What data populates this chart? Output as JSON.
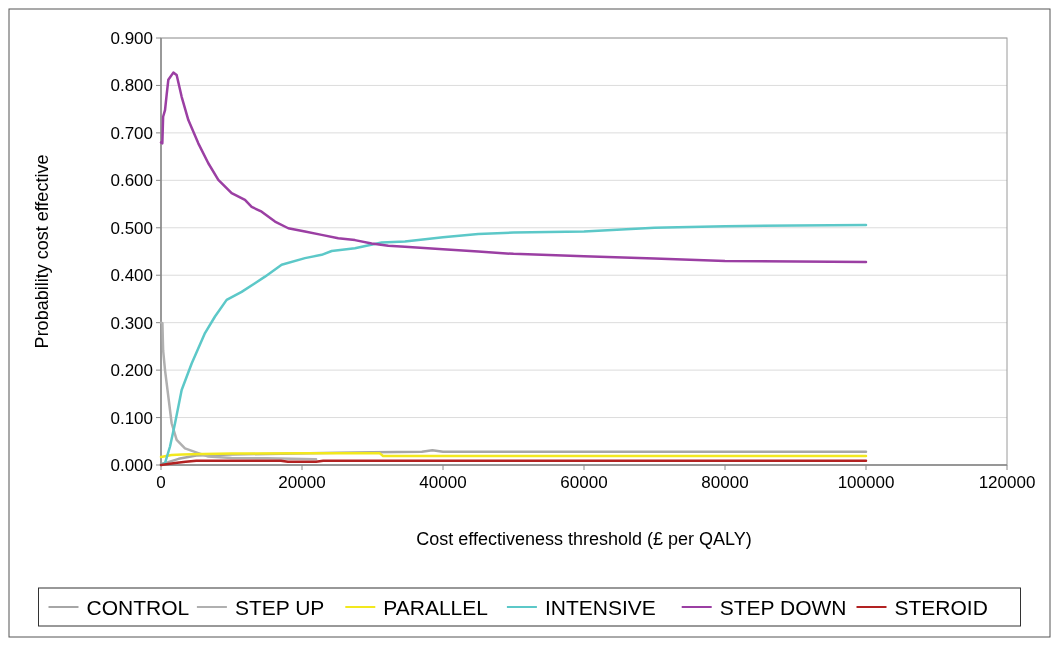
{
  "chart_data": {
    "type": "line",
    "xlabel": "Cost effectiveness threshold (£ per QALY)",
    "ylabel": "Probability cost effective",
    "xlim": [
      0,
      120000
    ],
    "xticks": [
      0,
      20000,
      40000,
      60000,
      80000,
      100000,
      120000
    ],
    "ylim": [
      0,
      0.9
    ],
    "yticks": [
      {
        "value": 0,
        "label": "0.000"
      },
      {
        "value": 0.1,
        "label": "0.100"
      },
      {
        "value": 0.2,
        "label": "0.200"
      },
      {
        "value": 0.3,
        "label": "0.300"
      },
      {
        "value": 0.4,
        "label": "0.400"
      },
      {
        "value": 0.5,
        "label": "0.500"
      },
      {
        "value": 0.6,
        "label": "0.600"
      },
      {
        "value": 0.7,
        "label": "0.700"
      },
      {
        "value": 0.8,
        "label": "0.800"
      },
      {
        "value": 0.9,
        "label": "0.900"
      }
    ],
    "grid": "y",
    "legend": "bottom",
    "marker": "none",
    "line_style": "solid",
    "series": [
      {
        "name": "CONTROL",
        "color": "#a6a6a6",
        "x": [
          0,
          1000,
          2500,
          5000,
          10000,
          25000,
          30000,
          37000,
          38500,
          40000,
          60000,
          80000,
          100000
        ],
        "values": [
          0.002,
          0.006,
          0.013,
          0.02,
          0.022,
          0.026,
          0.027,
          0.028,
          0.031,
          0.028,
          0.028,
          0.028,
          0.028
        ]
      },
      {
        "name": "STEP UP",
        "color": "#b0b0b0",
        "x": [
          0,
          200,
          300,
          570,
          1040,
          1510,
          2220,
          3400,
          5290,
          6710,
          10000,
          15000,
          22000
        ],
        "values": [
          0.3,
          0.299,
          0.242,
          0.2,
          0.144,
          0.088,
          0.053,
          0.035,
          0.025,
          0.018,
          0.015,
          0.014,
          0.012
        ]
      },
      {
        "name": "PARALLEL",
        "color": "#f2e81e",
        "x": [
          0,
          1500,
          3000,
          6000,
          10000,
          20000,
          31000,
          31500,
          50000,
          100000
        ],
        "values": [
          0.017,
          0.021,
          0.022,
          0.023,
          0.024,
          0.025,
          0.025,
          0.019,
          0.019,
          0.019
        ]
      },
      {
        "name": "INTENSIVE",
        "color": "#5cc8c8",
        "x": [
          0,
          570,
          1280,
          1990,
          2930,
          4350,
          6240,
          7660,
          9310,
          11440,
          13330,
          14750,
          17110,
          20420,
          22790,
          24210,
          27510,
          31300,
          34600,
          40000,
          45000,
          50000,
          60000,
          70000,
          80000,
          90000,
          100000
        ],
        "values": [
          0,
          0.004,
          0.039,
          0.088,
          0.158,
          0.214,
          0.278,
          0.313,
          0.348,
          0.365,
          0.383,
          0.397,
          0.422,
          0.436,
          0.443,
          0.451,
          0.457,
          0.469,
          0.471,
          0.48,
          0.487,
          0.49,
          0.492,
          0.5,
          0.503,
          0.505,
          0.506
        ]
      },
      {
        "name": "STEP DOWN",
        "color": "#9b3fa3",
        "x": [
          0,
          190,
          300,
          570,
          800,
          1040,
          1750,
          2220,
          2930,
          3880,
          5290,
          6710,
          8130,
          10020,
          11910,
          12860,
          14280,
          16170,
          18050,
          20420,
          22790,
          25140,
          27510,
          29880,
          32240,
          34600,
          40000,
          45000,
          50000,
          60000,
          70000,
          80000,
          100000
        ],
        "values": [
          0.68,
          0.678,
          0.734,
          0.748,
          0.78,
          0.812,
          0.827,
          0.822,
          0.776,
          0.727,
          0.678,
          0.636,
          0.601,
          0.573,
          0.559,
          0.544,
          0.534,
          0.513,
          0.499,
          0.492,
          0.485,
          0.478,
          0.474,
          0.467,
          0.462,
          0.46,
          0.455,
          0.45,
          0.445,
          0.44,
          0.435,
          0.43,
          0.428
        ]
      },
      {
        "name": "STEROID",
        "color": "#b22222",
        "x": [
          0,
          1000,
          2000,
          3500,
          5000,
          10000,
          17000,
          18000,
          22000,
          23000,
          40000,
          100000
        ],
        "values": [
          0,
          0.002,
          0.004,
          0.007,
          0.009,
          0.009,
          0.009,
          0.007,
          0.007,
          0.009,
          0.009,
          0.009
        ]
      }
    ]
  }
}
